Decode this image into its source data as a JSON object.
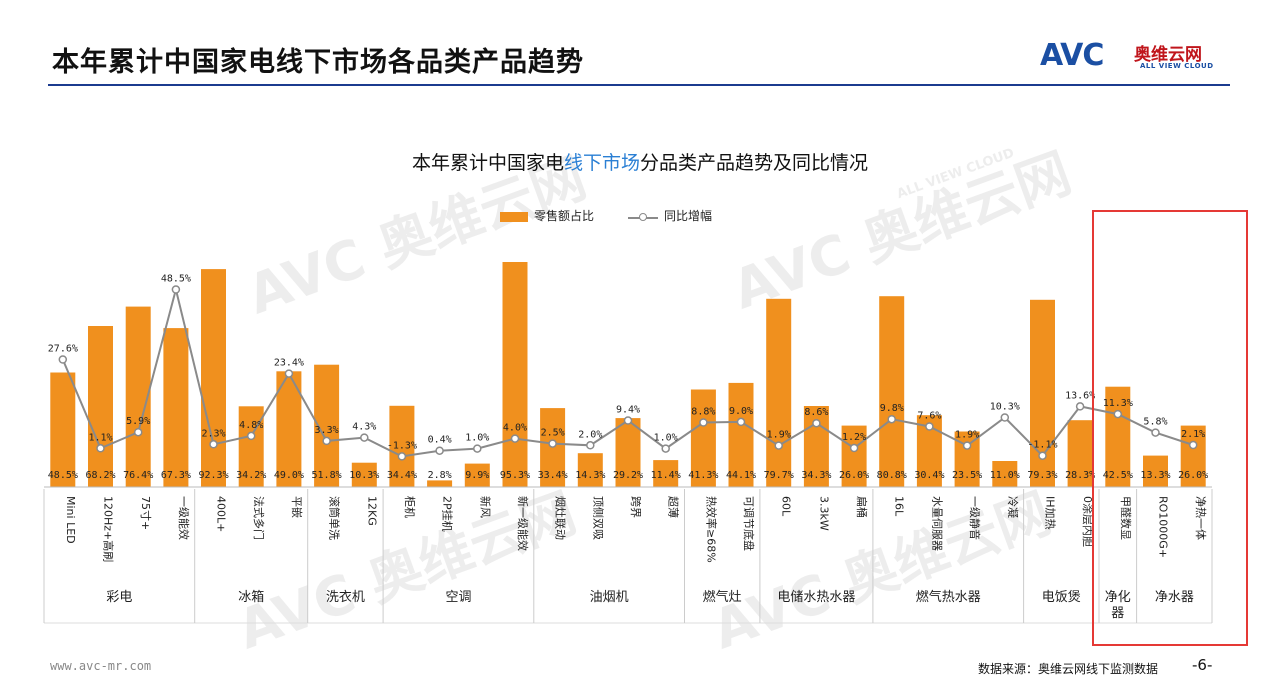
{
  "header": {
    "title": "本年累计中国家电线下市场各品类产品趋势"
  },
  "logo": {
    "main": "AVC",
    "cn": "奥维云网",
    "en": "ALL VIEW CLOUD"
  },
  "watermarks": [
    "AVC 奥维云网",
    "ALL VIEW CLOUD"
  ],
  "colors": {
    "bar": "#f0901e",
    "line": "#8a8a8a",
    "title_rule": "#1b3b8f",
    "highlight_box": "#e53935",
    "title_highlight": "#2a7fd4"
  },
  "chart_data": {
    "type": "bar",
    "title_parts": [
      "本年累计中国家电",
      "线下市场",
      "分品类产品趋势及同比情况"
    ],
    "legend": [
      "零售额占比",
      "同比增幅"
    ],
    "categories": [
      "Mini LED",
      "120Hz+高刷",
      "75寸+",
      "一级能效",
      "400L+",
      "法式多门",
      "平嵌",
      "滚筒单洗",
      "12KG",
      "柜机",
      "2P挂机",
      "新风",
      "新一级能效",
      "烟灶联动",
      "顶侧双吸",
      "跨界",
      "超薄",
      "热效率≥68%",
      "可调节底盘",
      "60L",
      "3.3kW",
      "扁桶",
      "16L",
      "水量伺服器",
      "一级静音",
      "冷凝",
      "IH加热",
      "0涂层内胆",
      "甲醛数显",
      "RO1000G+",
      "净热一体"
    ],
    "groups": [
      {
        "name": "彩电",
        "count": 4
      },
      {
        "name": "冰箱",
        "count": 3
      },
      {
        "name": "洗衣机",
        "count": 2
      },
      {
        "name": "空调",
        "count": 4
      },
      {
        "name": "油烟机",
        "count": 4
      },
      {
        "name": "燃气灶",
        "count": 2
      },
      {
        "name": "电储水热水器",
        "count": 3
      },
      {
        "name": "燃气热水器",
        "count": 4
      },
      {
        "name": "电饭煲",
        "count": 2
      },
      {
        "name": "净化器",
        "count": 1
      },
      {
        "name": "净水器",
        "count": 2
      }
    ],
    "series": [
      {
        "name": "零售额占比",
        "values": [
          48.5,
          68.2,
          76.4,
          67.3,
          92.3,
          34.2,
          49.0,
          51.8,
          10.3,
          34.4,
          2.8,
          9.9,
          95.3,
          33.4,
          14.3,
          29.2,
          11.4,
          41.3,
          44.1,
          79.7,
          34.3,
          26.0,
          80.8,
          30.4,
          23.5,
          11.0,
          79.3,
          28.3,
          42.5,
          13.3,
          26.0
        ],
        "labels": [
          "48.5%",
          "68.2%",
          "76.4%",
          "67.3%",
          "92.3%",
          "34.2%",
          "49.0%",
          "51.8%",
          "10.3%",
          "34.4%",
          "2.8%",
          "9.9%",
          "95.3%",
          "33.4%",
          "14.3%",
          "29.2%",
          "11.4%",
          "41.3%",
          "44.1%",
          "79.7%",
          "34.3%",
          "26.0%",
          "80.8%",
          "30.4%",
          "23.5%",
          "11.0%",
          "79.3%",
          "28.3%",
          "42.5%",
          "13.3%",
          "26.0%"
        ]
      },
      {
        "name": "同比增幅",
        "values": [
          27.6,
          1.1,
          5.9,
          48.5,
          2.3,
          4.8,
          23.4,
          3.3,
          4.3,
          -1.3,
          0.4,
          1.0,
          4.0,
          2.5,
          2.0,
          9.4,
          1.0,
          8.8,
          9.0,
          1.9,
          8.6,
          1.2,
          9.8,
          7.6,
          1.9,
          10.3,
          -1.1,
          13.6,
          11.3,
          5.8,
          2.1
        ],
        "labels": [
          "27.6%",
          "1.1%",
          "5.9%",
          "48.5%",
          "2.3%",
          "4.8%",
          "23.4%",
          "3.3%",
          "4.3%",
          "-1.3%",
          "0.4%",
          "1.0%",
          "4.0%",
          "2.5%",
          "2.0%",
          "9.4%",
          "1.0%",
          "8.8%",
          "9.0%",
          "1.9%",
          "8.6%",
          "1.2%",
          "9.8%",
          "7.6%",
          "1.9%",
          "10.3%",
          "-1.1%",
          "13.6%",
          "11.3%",
          "5.8%",
          "2.1%"
        ]
      }
    ],
    "grid": false
  },
  "footer": {
    "website": "www.avc-mr.com",
    "source": "数据来源：奥维云网线下监测数据",
    "page": "-6-"
  }
}
